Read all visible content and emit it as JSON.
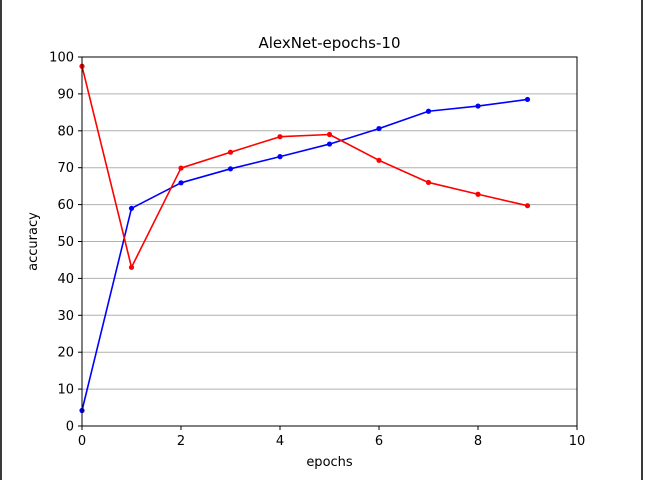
{
  "chart_data": {
    "type": "line",
    "title": "AlexNet-epochs-10",
    "xlabel": "epochs",
    "ylabel": "accuracy",
    "xlim": [
      0,
      10
    ],
    "ylim": [
      0,
      100
    ],
    "xticks": [
      "0",
      "2",
      "4",
      "6",
      "8",
      "10"
    ],
    "yticks": [
      "0",
      "10",
      "20",
      "30",
      "40",
      "50",
      "60",
      "70",
      "80",
      "90",
      "100"
    ],
    "grid": "horizontal",
    "x": [
      0,
      1,
      2,
      3,
      4,
      5,
      6,
      7,
      8,
      9
    ],
    "series": [
      {
        "color": "#0000ff",
        "values": [
          4.2,
          59.0,
          65.9,
          69.7,
          73.0,
          76.4,
          80.6,
          85.3,
          86.7,
          88.5
        ]
      },
      {
        "color": "#ff0000",
        "values": [
          97.5,
          43.0,
          69.9,
          74.2,
          78.4,
          79.0,
          72.0,
          66.0,
          62.8,
          59.7
        ]
      }
    ]
  }
}
